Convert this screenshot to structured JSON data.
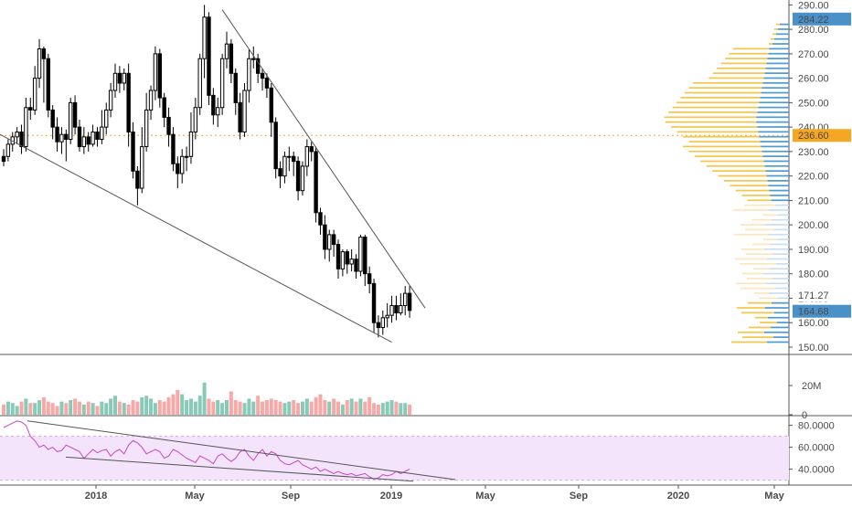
{
  "chart_data": {
    "type": "candlestick",
    "scale": "linear",
    "price_axis": {
      "ticks": [
        "150.00",
        "160.00",
        "170.00",
        "180.00",
        "190.00",
        "200.00",
        "210.00",
        "220.00",
        "230.00",
        "240.00",
        "250.00",
        "260.00",
        "270.00",
        "280.00",
        "290.00"
      ],
      "range": [
        147,
        292
      ],
      "badges": [
        {
          "label": "284.22",
          "value": 284.22,
          "color": "#4a90c9",
          "text_color": "#ffffff"
        },
        {
          "label": "236.60",
          "value": 236.6,
          "color": "#f5a623",
          "text_color": "#ffffff"
        },
        {
          "label": "171.27",
          "value": 171.27,
          "color": "#ffffff",
          "text_color": "#333333"
        },
        {
          "label": "164.68",
          "value": 164.68,
          "color": "#4a90c9",
          "text_color": "#ffffff"
        }
      ],
      "reference_line": 236.6
    },
    "x_axis": {
      "labels": [
        "2018",
        "May",
        "Sep",
        "2019",
        "May",
        "Sep",
        "2020",
        "May"
      ]
    },
    "candles": [
      [
        228,
        226,
        231,
        224
      ],
      [
        228,
        233,
        235,
        226
      ],
      [
        233,
        236,
        238,
        230
      ],
      [
        236,
        238,
        240,
        233
      ],
      [
        238,
        232,
        241,
        229
      ],
      [
        232,
        248,
        252,
        230
      ],
      [
        248,
        247,
        252,
        243
      ],
      [
        247,
        260,
        265,
        245
      ],
      [
        260,
        272,
        276,
        256
      ],
      [
        272,
        268,
        273,
        250
      ],
      [
        268,
        247,
        270,
        244
      ],
      [
        247,
        240,
        249,
        235
      ],
      [
        240,
        234,
        244,
        230
      ],
      [
        234,
        237,
        240,
        229
      ],
      [
        237,
        235,
        239,
        226
      ],
      [
        235,
        250,
        252,
        233
      ],
      [
        250,
        240,
        253,
        237
      ],
      [
        240,
        232,
        243,
        230
      ],
      [
        232,
        236,
        240,
        229
      ],
      [
        236,
        233,
        238,
        230
      ],
      [
        233,
        238,
        241,
        232
      ],
      [
        238,
        235,
        240,
        232
      ],
      [
        235,
        240,
        247,
        233
      ],
      [
        240,
        247,
        250,
        237
      ],
      [
        247,
        255,
        258,
        244
      ],
      [
        255,
        262,
        266,
        252
      ],
      [
        262,
        258,
        265,
        254
      ],
      [
        258,
        262,
        264,
        255
      ],
      [
        262,
        238,
        266,
        232
      ],
      [
        238,
        222,
        242,
        219
      ],
      [
        222,
        215,
        224,
        208
      ],
      [
        215,
        232,
        240,
        213
      ],
      [
        232,
        247,
        254,
        230
      ],
      [
        247,
        255,
        257,
        243
      ],
      [
        255,
        270,
        273,
        251
      ],
      [
        270,
        252,
        272,
        248
      ],
      [
        252,
        244,
        254,
        240
      ],
      [
        244,
        237,
        248,
        232
      ],
      [
        237,
        225,
        240,
        222
      ],
      [
        225,
        221,
        228,
        215
      ],
      [
        221,
        228,
        231,
        217
      ],
      [
        228,
        228,
        232,
        222
      ],
      [
        228,
        238,
        246,
        225
      ],
      [
        238,
        248,
        252,
        235
      ],
      [
        248,
        268,
        270,
        245
      ],
      [
        268,
        285,
        290,
        260
      ],
      [
        285,
        253,
        287,
        249
      ],
      [
        253,
        245,
        256,
        241
      ],
      [
        245,
        248,
        252,
        240
      ],
      [
        248,
        268,
        270,
        245
      ],
      [
        268,
        274,
        279,
        264
      ],
      [
        274,
        262,
        276,
        258
      ],
      [
        262,
        250,
        264,
        245
      ],
      [
        250,
        238,
        254,
        235
      ],
      [
        238,
        255,
        258,
        236
      ],
      [
        255,
        268,
        272,
        250
      ],
      [
        268,
        268,
        273,
        264
      ],
      [
        268,
        262,
        270,
        258
      ],
      [
        262,
        260,
        264,
        255
      ],
      [
        260,
        256,
        262,
        252
      ],
      [
        256,
        242,
        258,
        236
      ],
      [
        242,
        223,
        244,
        219
      ],
      [
        223,
        220,
        226,
        215
      ],
      [
        220,
        228,
        230,
        217
      ],
      [
        228,
        228,
        232,
        222
      ],
      [
        228,
        226,
        230,
        220
      ],
      [
        226,
        214,
        228,
        210
      ],
      [
        214,
        224,
        226,
        212
      ],
      [
        224,
        232,
        235,
        220
      ],
      [
        232,
        230,
        234,
        226
      ],
      [
        230,
        205,
        232,
        201
      ],
      [
        205,
        200,
        207,
        196
      ],
      [
        200,
        190,
        204,
        186
      ],
      [
        190,
        196,
        198,
        185
      ],
      [
        196,
        192,
        198,
        187
      ],
      [
        192,
        182,
        194,
        178
      ],
      [
        182,
        189,
        190,
        179
      ],
      [
        189,
        184,
        190,
        180
      ],
      [
        184,
        186,
        190,
        181
      ],
      [
        186,
        181,
        188,
        178
      ],
      [
        181,
        195,
        196,
        179
      ],
      [
        195,
        180,
        196,
        175
      ],
      [
        180,
        176,
        183,
        172
      ],
      [
        176,
        160,
        178,
        156
      ],
      [
        160,
        158,
        163,
        154
      ],
      [
        158,
        162,
        165,
        155
      ],
      [
        162,
        163,
        168,
        158
      ],
      [
        163,
        167,
        171,
        160
      ],
      [
        167,
        164,
        171,
        161
      ],
      [
        164,
        167,
        172,
        163
      ],
      [
        167,
        172,
        175,
        163
      ],
      [
        172,
        165,
        175,
        162
      ]
    ],
    "volume": {
      "axis_ticks": [
        "0",
        "20M"
      ],
      "range": [
        0,
        40
      ],
      "bars": [
        7,
        9,
        8,
        6,
        9,
        11,
        8,
        8,
        10,
        12,
        9,
        8,
        6,
        9,
        8,
        10,
        11,
        9,
        7,
        9,
        8,
        6,
        9,
        8,
        11,
        13,
        9,
        8,
        7,
        10,
        9,
        12,
        13,
        11,
        8,
        10,
        9,
        12,
        14,
        17,
        14,
        10,
        11,
        9,
        13,
        22,
        11,
        9,
        10,
        8,
        10,
        16,
        10,
        9,
        8,
        11,
        9,
        13,
        9,
        10,
        11,
        10,
        9,
        8,
        9,
        10,
        8,
        9,
        11,
        9,
        12,
        14,
        10,
        9,
        11,
        9,
        7,
        10,
        11,
        9,
        11,
        9,
        12,
        8,
        7,
        8,
        9,
        10,
        9,
        8,
        8,
        7
      ],
      "up_color": "#89c9b8",
      "down_color": "#f7a9a8"
    },
    "oscillator": {
      "axis_ticks": [
        "40.0000",
        "60.0000",
        "80.0000"
      ],
      "range": [
        28,
        88
      ],
      "band": [
        30,
        70
      ],
      "line_color": "#c846c8",
      "values": [
        78,
        80,
        82,
        84,
        83,
        80,
        70,
        66,
        60,
        62,
        58,
        60,
        56,
        57,
        62,
        60,
        58,
        56,
        50,
        54,
        58,
        55,
        57,
        58,
        52,
        56,
        58,
        54,
        62,
        66,
        64,
        60,
        54,
        56,
        58,
        56,
        50,
        52,
        58,
        56,
        53,
        50,
        48,
        46,
        52,
        50,
        48,
        45,
        52,
        54,
        50,
        47,
        50,
        56,
        58,
        52,
        48,
        54,
        58,
        52,
        56,
        54,
        48,
        45,
        44,
        46,
        48,
        44,
        42,
        40,
        42,
        38,
        40,
        38,
        36,
        38,
        36,
        35,
        36,
        34,
        35,
        36,
        33,
        31,
        32,
        35,
        34,
        35,
        38,
        36,
        38,
        40
      ]
    }
  }
}
